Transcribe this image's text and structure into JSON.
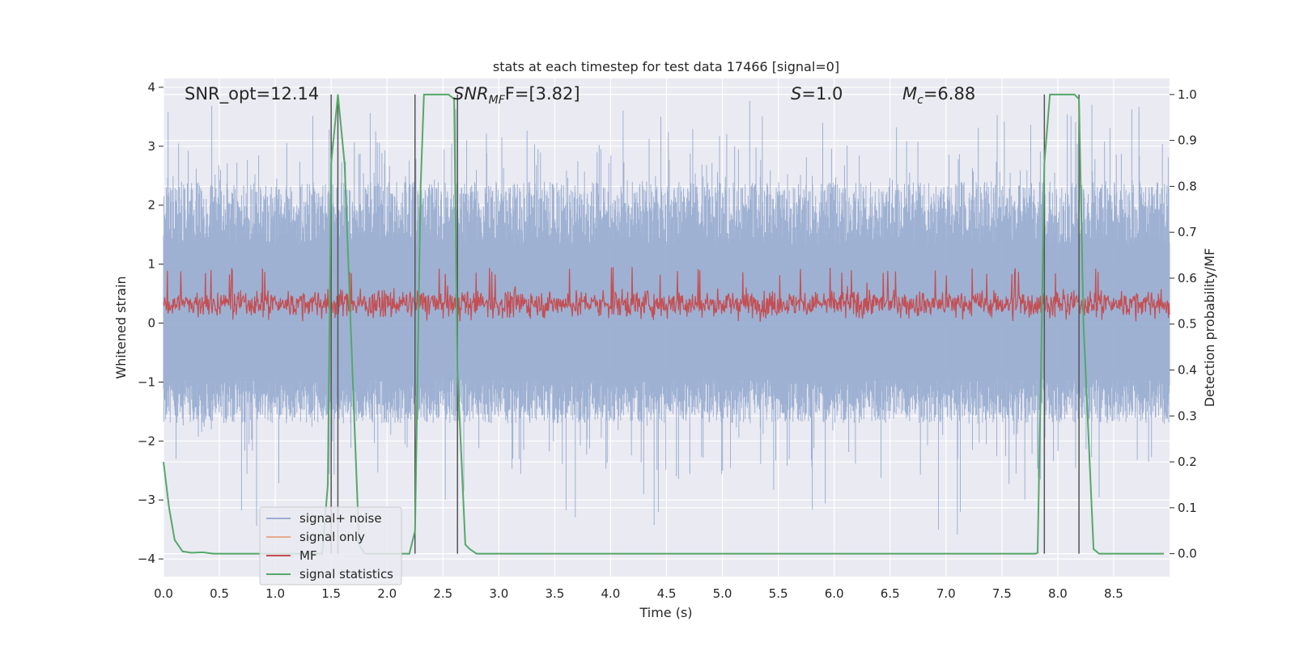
{
  "chart_data": {
    "type": "line",
    "title": "stats at each timestep for test data 17466 [signal=0]",
    "xlabel": "Time (s)",
    "ylabel": "Whitened strain",
    "y2label": "Detection probability/MF",
    "xlim": [
      0.0,
      9.0
    ],
    "ylim": [
      -4.3,
      4.15
    ],
    "y2lim": [
      -0.05,
      1.035
    ],
    "xticks": [
      "0.0",
      "0.5",
      "1.0",
      "1.5",
      "2.0",
      "2.5",
      "3.0",
      "3.5",
      "4.0",
      "4.5",
      "5.0",
      "5.5",
      "6.0",
      "6.5",
      "7.0",
      "7.5",
      "8.0",
      "8.5"
    ],
    "yticks": [
      "4",
      "3",
      "2",
      "1",
      "0",
      "−1",
      "−2",
      "−3",
      "−4"
    ],
    "y2ticks": [
      "1.0",
      "0.9",
      "0.8",
      "0.7",
      "0.6",
      "0.5",
      "0.4",
      "0.3",
      "0.2",
      "0.1",
      "0.0"
    ],
    "grid": true,
    "legend_position": "lower-left",
    "annotations": {
      "snr_opt": "SNR_opt=12.14",
      "snr_mf_base": "SNR",
      "snr_mf_sub": "MF",
      "snr_mf_rest": "F=[3.82]",
      "s_base": "S",
      "s_rest": "=1.0",
      "mc_base": "M",
      "mc_sub": "c",
      "mc_rest": "=6.88"
    },
    "series": [
      {
        "name": "signal+ noise",
        "color": "#9aaed1",
        "amplitude_envelope": [
          -3.6,
          3.8
        ],
        "typical_range": [
          -1.7,
          2.4
        ]
      },
      {
        "name": "signal only",
        "color": "#e9a98c",
        "values": []
      },
      {
        "name": "MF",
        "color": "#c44e52",
        "typical_range": [
          0.0,
          0.95
        ]
      },
      {
        "name": "signal statistics",
        "color": "#55a868",
        "x": [
          0.0,
          0.05,
          0.1,
          0.17,
          0.25,
          0.35,
          0.45,
          1.35,
          1.42,
          1.47,
          1.5,
          1.56,
          1.62,
          1.69,
          1.75,
          1.8,
          2.15,
          2.2,
          2.25,
          2.3,
          2.33,
          2.55,
          2.6,
          2.63,
          2.7,
          2.74,
          2.8,
          7.8,
          7.82,
          7.85,
          7.88,
          7.93,
          8.15,
          8.19,
          8.23,
          8.32,
          8.37,
          8.42,
          8.95
        ],
        "values": [
          0.2,
          0.1,
          0.03,
          0.005,
          0.002,
          0.003,
          0.0,
          0.0,
          0.0,
          0.15,
          0.85,
          1.0,
          0.85,
          0.4,
          0.02,
          0.0,
          0.0,
          0.0,
          0.05,
          0.8,
          1.0,
          1.0,
          0.99,
          0.4,
          0.02,
          0.01,
          0.0,
          0.0,
          0.002,
          0.4,
          0.85,
          1.0,
          1.0,
          0.99,
          0.5,
          0.01,
          0.0,
          0.0,
          0.0
        ]
      }
    ],
    "vertical_lines_x": [
      1.5,
      1.56,
      2.25,
      2.63,
      7.88,
      8.19
    ]
  }
}
